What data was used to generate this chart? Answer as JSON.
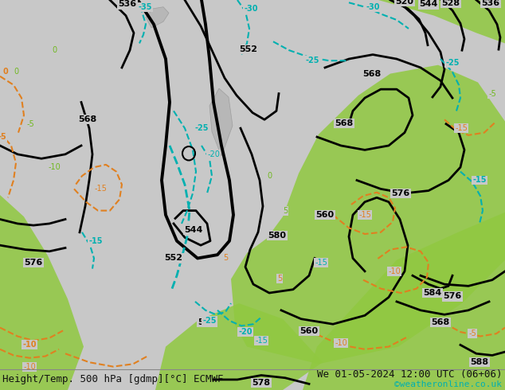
{
  "title_left": "Height/Temp. 500 hPa [gdmp][°C] ECMWF",
  "title_right": "We 01-05-2024 12:00 UTC (06+06)",
  "credit": "©weatheronline.co.uk",
  "bg_color": "#c8c8c8",
  "green_color": "#90c840",
  "cyan_color": "#00b0b0",
  "orange_color": "#e08020",
  "black_color": "#000000",
  "label_fontsize": 8,
  "title_fontsize": 9,
  "credit_fontsize": 8
}
